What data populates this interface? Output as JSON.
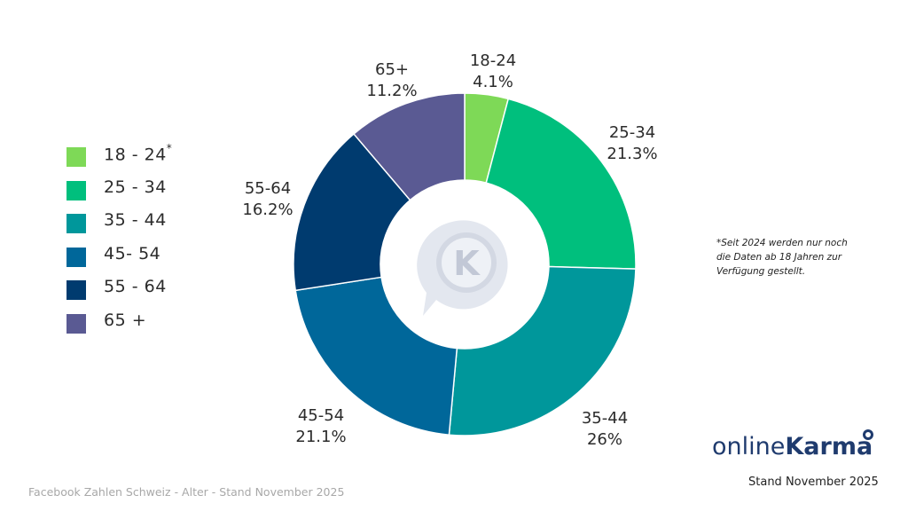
{
  "chart_data": {
    "type": "donut",
    "categories": [
      "18-24",
      "25-34",
      "35-44",
      "45-54",
      "55-64",
      "65+"
    ],
    "values": [
      4.1,
      21.3,
      26,
      21.1,
      16.2,
      11.2
    ],
    "value_labels": [
      "4.1%",
      "21.3%",
      "26%",
      "21.1%",
      "16.2%",
      "11.2%"
    ],
    "colors": [
      "#7ed957",
      "#00bf7d",
      "#00979b",
      "#00679a",
      "#003b6f",
      "#5a5a93"
    ],
    "legend": {
      "placement": "left",
      "entries": [
        "18 - 24",
        "25 - 34",
        "35 - 44",
        "45- 54",
        "55 - 64",
        "65 +"
      ],
      "first_entry_marker": "*"
    }
  },
  "center_logo": {
    "icon": "k-speech-bubble-icon",
    "letter": "K"
  },
  "note": "*Seit 2024 werden nur noch die Daten ab 18 Jahren zur Verfügung gestellt.",
  "brand": {
    "part1": "online",
    "part2": "Karma"
  },
  "stand": "Stand November 2025",
  "footer": "Facebook Zahlen Schweiz - Alter - Stand November 2025"
}
